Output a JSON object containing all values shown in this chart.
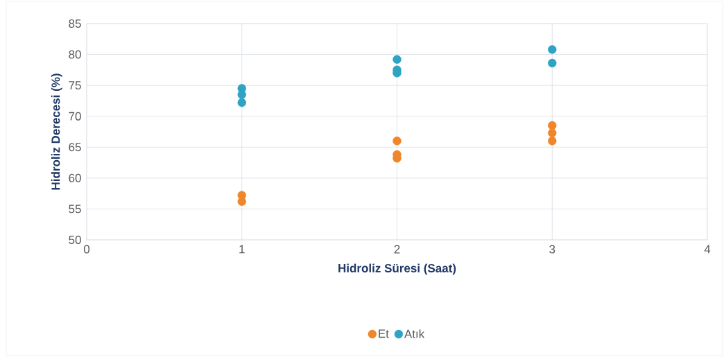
{
  "chart_data": {
    "type": "scatter",
    "xlabel": "Hidroliz Süresi (Saat)",
    "ylabel": "Hidroliz Derecesi (%)",
    "xlim": [
      0,
      4
    ],
    "xticks": [
      0,
      1,
      2,
      3,
      4
    ],
    "ylim": [
      50,
      85
    ],
    "yticks": [
      50,
      55,
      60,
      65,
      70,
      75,
      80,
      85
    ],
    "grid": true,
    "legend": "bottom",
    "marker": "circle",
    "series": [
      {
        "name": "Et",
        "color": "#f0862a",
        "x": [
          1,
          1,
          2,
          2,
          2,
          3,
          3,
          3
        ],
        "values": [
          57.2,
          56.2,
          66.0,
          63.8,
          63.2,
          68.5,
          67.3,
          66.0
        ]
      },
      {
        "name": "Atık",
        "color": "#2fa3c4",
        "x": [
          1,
          1,
          1,
          2,
          2,
          2,
          3,
          3
        ],
        "values": [
          74.5,
          73.5,
          72.2,
          79.2,
          77.5,
          77.0,
          80.8,
          78.6
        ]
      }
    ]
  }
}
